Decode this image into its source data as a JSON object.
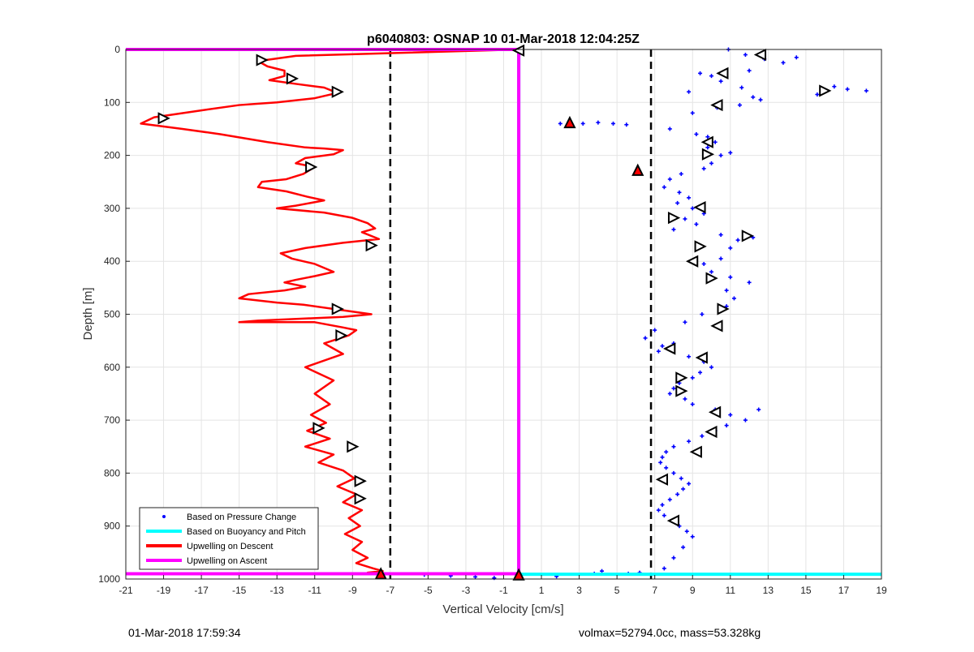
{
  "chart_data": {
    "type": "scatter",
    "title": "p6040803: OSNAP 10 01-Mar-2018 12:04:25Z",
    "xlabel": "Vertical Velocity [cm/s]",
    "ylabel": "Depth [m]",
    "xlim": [
      -21,
      19
    ],
    "ylim": [
      0,
      1000
    ],
    "y_reversed": true,
    "grid": true,
    "xticks": [
      "-21",
      "-19",
      "-17",
      "-15",
      "-13",
      "-11",
      "-9",
      "-7",
      "-5",
      "-3",
      "-1",
      "1",
      "3",
      "5",
      "7",
      "9",
      "11",
      "13",
      "15",
      "17",
      "19"
    ],
    "yticks": [
      "0",
      "100",
      "200",
      "300",
      "400",
      "500",
      "600",
      "700",
      "800",
      "900",
      "1000"
    ],
    "legend_position": "bottom-left",
    "thresholds": [
      -7,
      6.8
    ],
    "series": [
      {
        "name": "Based on Pressure Change",
        "style": "points",
        "color": "#0000ff",
        "x": [
          10.9,
          11.8,
          12.8,
          13.8,
          14.5,
          12.0,
          9.4,
          8.8,
          10.0,
          10.5,
          11.6,
          12.2,
          15.6,
          16.5,
          17.2,
          18.2,
          12.6,
          11.5,
          10.3,
          9.0,
          2.0,
          3.2,
          4.0,
          4.8,
          5.5,
          7.8,
          9.2,
          9.8,
          10.2,
          9.8,
          10.5,
          11.0,
          10.0,
          9.6,
          8.4,
          7.8,
          7.5,
          8.3,
          8.8,
          8.2,
          9.0,
          9.6,
          8.6,
          9.2,
          8.0,
          10.5,
          11.4,
          12.2,
          11.0,
          10.5,
          9.6,
          10.0,
          11.0,
          12.0,
          10.8,
          11.2,
          10.8,
          9.5,
          8.6,
          7.0,
          6.5,
          7.4,
          8.0,
          7.2,
          8.8,
          9.6,
          10.0,
          9.4,
          9.0,
          8.3,
          8.0,
          7.8,
          8.6,
          9.0,
          10.2,
          11.0,
          11.8,
          12.5,
          10.8,
          10.2,
          9.5,
          8.8,
          8.0,
          7.6,
          7.4,
          7.3,
          7.6,
          8.0,
          8.4,
          8.8,
          8.5,
          8.2,
          7.8,
          7.4,
          7.2,
          7.5,
          7.9,
          8.3,
          8.7,
          9.0,
          8.5,
          8.0,
          3.8,
          4.2,
          5.6,
          6.2,
          -5.2,
          -3.8,
          -2.5,
          -1.5,
          1.8,
          7.5
        ],
        "y": [
          0,
          10,
          18,
          25,
          15,
          40,
          45,
          80,
          50,
          60,
          72,
          90,
          85,
          70,
          75,
          78,
          95,
          105,
          110,
          120,
          140,
          140,
          138,
          140,
          142,
          150,
          160,
          165,
          175,
          185,
          200,
          195,
          215,
          225,
          235,
          245,
          260,
          270,
          280,
          290,
          300,
          310,
          320,
          330,
          340,
          350,
          360,
          355,
          375,
          395,
          405,
          420,
          430,
          440,
          455,
          470,
          485,
          500,
          515,
          530,
          545,
          560,
          555,
          570,
          580,
          590,
          600,
          610,
          620,
          630,
          640,
          650,
          660,
          670,
          680,
          690,
          700,
          680,
          710,
          720,
          730,
          740,
          750,
          760,
          770,
          780,
          790,
          800,
          810,
          820,
          830,
          840,
          850,
          860,
          870,
          880,
          890,
          900,
          910,
          920,
          940,
          960,
          990,
          985,
          990,
          988,
          992,
          994,
          996,
          998,
          995,
          980
        ]
      },
      {
        "name": "Based on Buoyancy and Pitch",
        "style": "line",
        "color": "#00ffff",
        "x": [
          -0.2,
          -0.2,
          -0.2,
          19
        ],
        "y": [
          0,
          991,
          991,
          991
        ]
      },
      {
        "name": "Upwelling on Descent",
        "style": "line",
        "color": "#ff0000",
        "x": [
          -0.2,
          -12,
          -14,
          -13.5,
          -12.6,
          -12.6,
          -13.4,
          -12.0,
          -10.5,
          -9.8,
          -11.0,
          -13.0,
          -15.0,
          -17.0,
          -19.5,
          -20.2,
          -18.0,
          -16.0,
          -13.5,
          -11.5,
          -10.5,
          -9.5,
          -10.0,
          -11.5,
          -12.0,
          -11.0,
          -11.6,
          -12.5,
          -13.8,
          -14.0,
          -12.5,
          -11.4,
          -10.5,
          -12.0,
          -13.0,
          -10.5,
          -9.0,
          -8.2,
          -7.8,
          -8.5,
          -7.6,
          -9.5,
          -11.5,
          -12.8,
          -12.2,
          -11.0,
          -10.0,
          -11.0,
          -12.0,
          -12.6,
          -11.5,
          -12.6,
          -14.5,
          -15.0,
          -13.0,
          -11.6,
          -10.0,
          -8.0,
          -9.5,
          -14.0,
          -15.0,
          -11.0,
          -9.5,
          -8.8,
          -9.2,
          -10.5,
          -9.5,
          -11.5,
          -10.0,
          -11.0,
          -10.2,
          -11.2,
          -10.4,
          -11.4,
          -10.2,
          -11.5,
          -10.0,
          -10.8,
          -9.5,
          -8.9,
          -9.8,
          -8.8,
          -9.5,
          -8.5,
          -9.2,
          -8.6,
          -9.4,
          -8.5,
          -9.0,
          -8.2,
          -8.8,
          -7.9,
          -7.4,
          -8.2,
          -7.6,
          -0.2
        ],
        "y": [
          0,
          12,
          22,
          32,
          40,
          50,
          58,
          65,
          72,
          82,
          92,
          100,
          105,
          115,
          128,
          140,
          150,
          160,
          175,
          185,
          187,
          190,
          198,
          205,
          215,
          222,
          235,
          245,
          250,
          260,
          268,
          278,
          285,
          295,
          300,
          308,
          318,
          328,
          338,
          345,
          358,
          365,
          375,
          385,
          395,
          405,
          420,
          428,
          435,
          440,
          448,
          455,
          462,
          470,
          478,
          482,
          490,
          500,
          505,
          512,
          515,
          515,
          525,
          530,
          540,
          555,
          575,
          600,
          625,
          650,
          670,
          690,
          705,
          720,
          735,
          750,
          765,
          780,
          795,
          810,
          825,
          840,
          855,
          870,
          885,
          900,
          915,
          930,
          945,
          960,
          970,
          980,
          985,
          988,
          990,
          990
        ]
      },
      {
        "name": "Upwelling on Ascent",
        "style": "line",
        "color": "#ff00ff",
        "x": [
          -21,
          -7,
          -0.2,
          -0.2,
          -21
        ],
        "y": [
          0,
          0,
          0,
          990,
          990
        ]
      }
    ],
    "markers": {
      "up_triangles": [
        {
          "x": -7.5,
          "y": 990
        },
        {
          "x": -0.2,
          "y": 992
        }
      ],
      "down_triangles": [],
      "left_triangles": [
        {
          "x": 12.6,
          "y": 10
        },
        {
          "x": 10.6,
          "y": 45
        },
        {
          "x": -0.2,
          "y": 2
        },
        {
          "x": 10.3,
          "y": 105
        },
        {
          "x": 9.8,
          "y": 175
        },
        {
          "x": 9.4,
          "y": 298
        },
        {
          "x": 9.0,
          "y": 400
        },
        {
          "x": 10.3,
          "y": 522
        },
        {
          "x": 9.5,
          "y": 582
        },
        {
          "x": 10.2,
          "y": 685
        },
        {
          "x": 9.2,
          "y": 760
        },
        {
          "x": 7.4,
          "y": 812
        },
        {
          "x": 8.0,
          "y": 890
        },
        {
          "x": 7.8,
          "y": 565
        },
        {
          "x": 10.0,
          "y": 722
        }
      ],
      "right_triangles": [
        {
          "x": -13.8,
          "y": 20
        },
        {
          "x": -12.2,
          "y": 55
        },
        {
          "x": -9.8,
          "y": 80
        },
        {
          "x": -19.0,
          "y": 130
        },
        {
          "x": -11.2,
          "y": 222
        },
        {
          "x": -8.0,
          "y": 370
        },
        {
          "x": -9.8,
          "y": 490
        },
        {
          "x": -9.6,
          "y": 540
        },
        {
          "x": -10.8,
          "y": 715
        },
        {
          "x": -9.0,
          "y": 750
        },
        {
          "x": -8.6,
          "y": 815
        },
        {
          "x": -8.6,
          "y": 848
        },
        {
          "x": 16.0,
          "y": 78
        },
        {
          "x": 9.8,
          "y": 198
        },
        {
          "x": 8.0,
          "y": 318
        },
        {
          "x": 9.4,
          "y": 372
        },
        {
          "x": 10.0,
          "y": 432
        },
        {
          "x": 10.6,
          "y": 490
        },
        {
          "x": 8.4,
          "y": 620
        },
        {
          "x": 8.4,
          "y": 645
        },
        {
          "x": 11.9,
          "y": 352
        }
      ],
      "red_triangles": [
        {
          "x": 2.5,
          "y": 138
        },
        {
          "x": 6.1,
          "y": 228
        }
      ]
    }
  },
  "footer": {
    "left": "01-Mar-2018 17:59:34",
    "right": "volmax=52794.0cc, mass=53.328kg"
  }
}
